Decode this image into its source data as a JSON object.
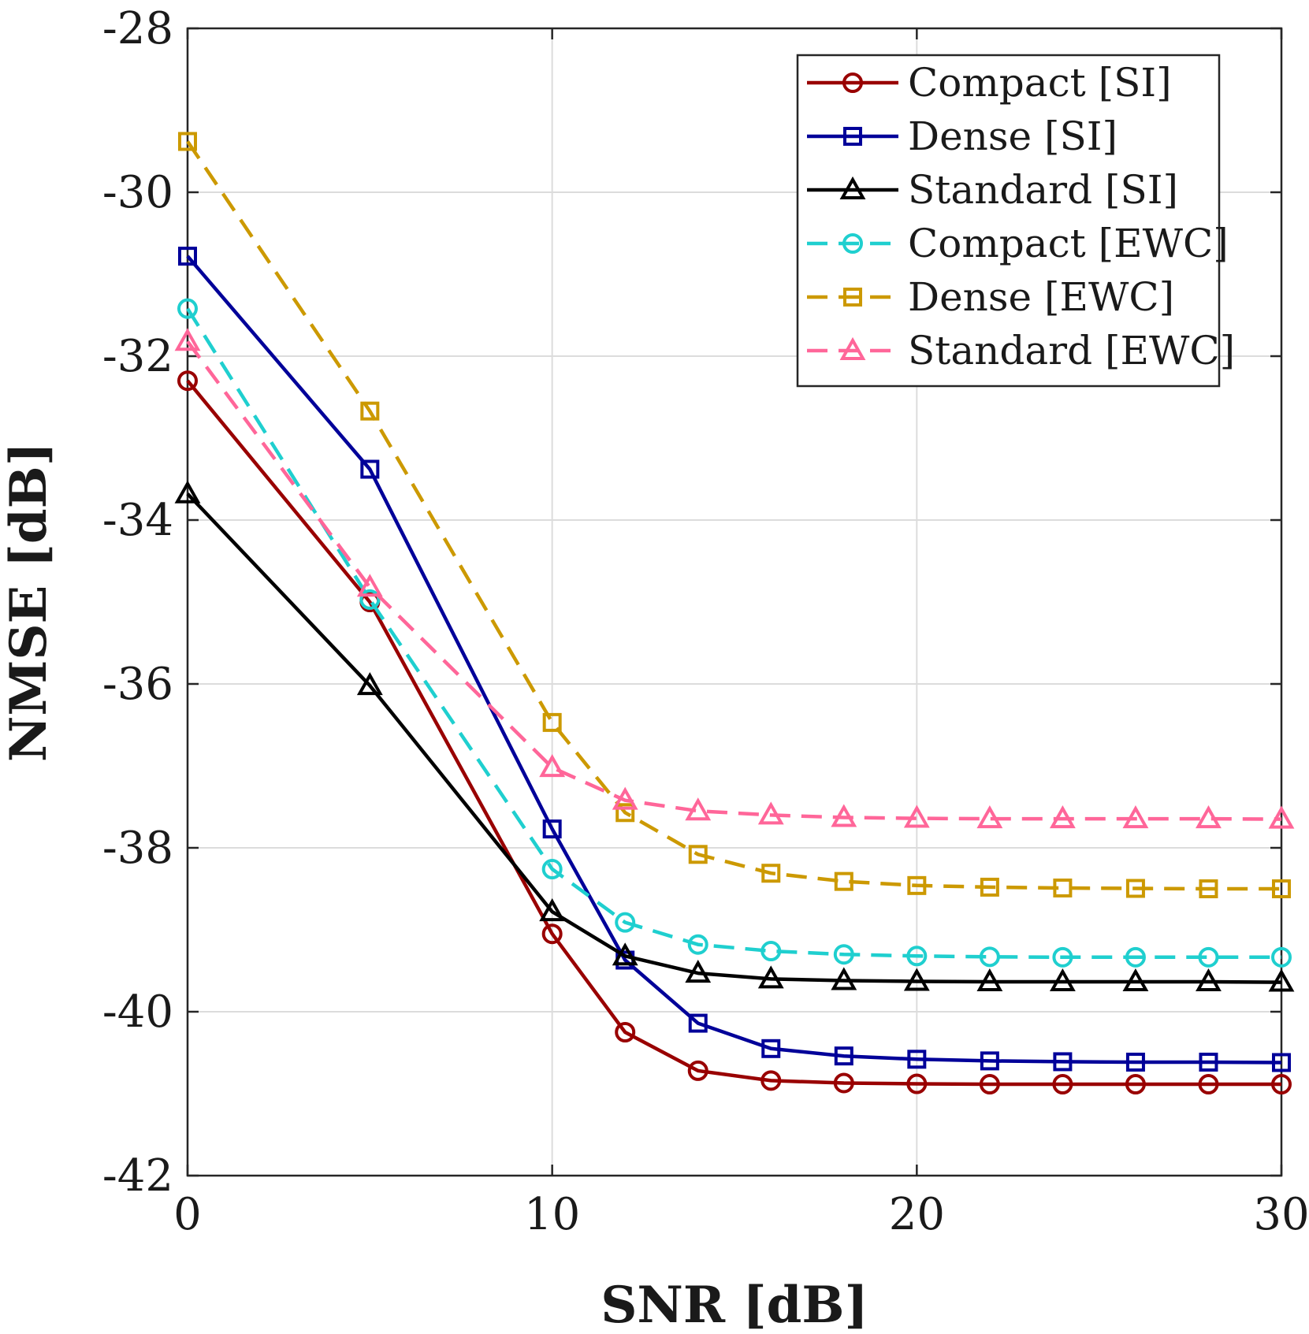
{
  "chart_data": {
    "type": "line",
    "title": "",
    "xlabel": "SNR [dB]",
    "ylabel": "NMSE [dB]",
    "xlim": [
      0,
      30
    ],
    "ylim": [
      -42,
      -28
    ],
    "xticks": [
      0,
      10,
      20,
      30
    ],
    "yticks": [
      -42,
      -40,
      -38,
      -36,
      -34,
      -32,
      -30,
      -28
    ],
    "xtick_labels": [
      "0",
      "10",
      "20",
      "30"
    ],
    "ytick_labels": [
      "-42",
      "-40",
      "-38",
      "-36",
      "-34",
      "-32",
      "-30",
      "-28"
    ],
    "grid": true,
    "legend_position": "top-right",
    "series": [
      {
        "name": "Compact [SI]",
        "color": "#990000",
        "dashed": false,
        "marker": "circle",
        "x": [
          0,
          5,
          10,
          12,
          14,
          16,
          18,
          20,
          22,
          24,
          26,
          28,
          30
        ],
        "y": [
          -32.3,
          -35.0,
          -39.05,
          -40.25,
          -40.72,
          -40.84,
          -40.87,
          -40.88,
          -40.885,
          -40.885,
          -40.885,
          -40.885,
          -40.885
        ]
      },
      {
        "name": "Dense [SI]",
        "color": "#000099",
        "dashed": false,
        "marker": "square",
        "x": [
          0,
          5,
          10,
          12,
          14,
          16,
          18,
          20,
          22,
          24,
          26,
          28,
          30
        ],
        "y": [
          -30.78,
          -33.38,
          -37.77,
          -39.37,
          -40.14,
          -40.45,
          -40.54,
          -40.58,
          -40.6,
          -40.61,
          -40.615,
          -40.615,
          -40.62
        ]
      },
      {
        "name": "Standard [SI]",
        "color": "#000000",
        "dashed": false,
        "marker": "triangle",
        "x": [
          0,
          5,
          10,
          12,
          14,
          16,
          18,
          20,
          22,
          24,
          26,
          28,
          30
        ],
        "y": [
          -33.68,
          -36.02,
          -38.78,
          -39.32,
          -39.53,
          -39.6,
          -39.62,
          -39.63,
          -39.635,
          -39.635,
          -39.635,
          -39.635,
          -39.64
        ]
      },
      {
        "name": "Compact [EWC]",
        "color": "#1fcfcf",
        "dashed": true,
        "marker": "circle",
        "x": [
          0,
          5,
          10,
          12,
          14,
          16,
          18,
          20,
          22,
          24,
          26,
          28,
          30
        ],
        "y": [
          -31.42,
          -34.97,
          -38.26,
          -38.91,
          -39.18,
          -39.26,
          -39.3,
          -39.32,
          -39.33,
          -39.335,
          -39.335,
          -39.335,
          -39.335
        ]
      },
      {
        "name": "Dense [EWC]",
        "color": "#cc9900",
        "dashed": true,
        "marker": "square",
        "x": [
          0,
          5,
          10,
          12,
          14,
          16,
          18,
          20,
          22,
          24,
          26,
          28,
          30
        ],
        "y": [
          -29.38,
          -32.67,
          -36.47,
          -37.57,
          -38.08,
          -38.31,
          -38.41,
          -38.46,
          -38.48,
          -38.49,
          -38.495,
          -38.5,
          -38.5
        ]
      },
      {
        "name": "Standard [EWC]",
        "color": "#ff6699",
        "dashed": true,
        "marker": "triangle",
        "x": [
          0,
          5,
          10,
          12,
          14,
          16,
          18,
          20,
          22,
          24,
          26,
          28,
          30
        ],
        "y": [
          -31.82,
          -34.82,
          -37.02,
          -37.42,
          -37.55,
          -37.6,
          -37.63,
          -37.64,
          -37.645,
          -37.645,
          -37.645,
          -37.645,
          -37.65
        ]
      }
    ]
  }
}
